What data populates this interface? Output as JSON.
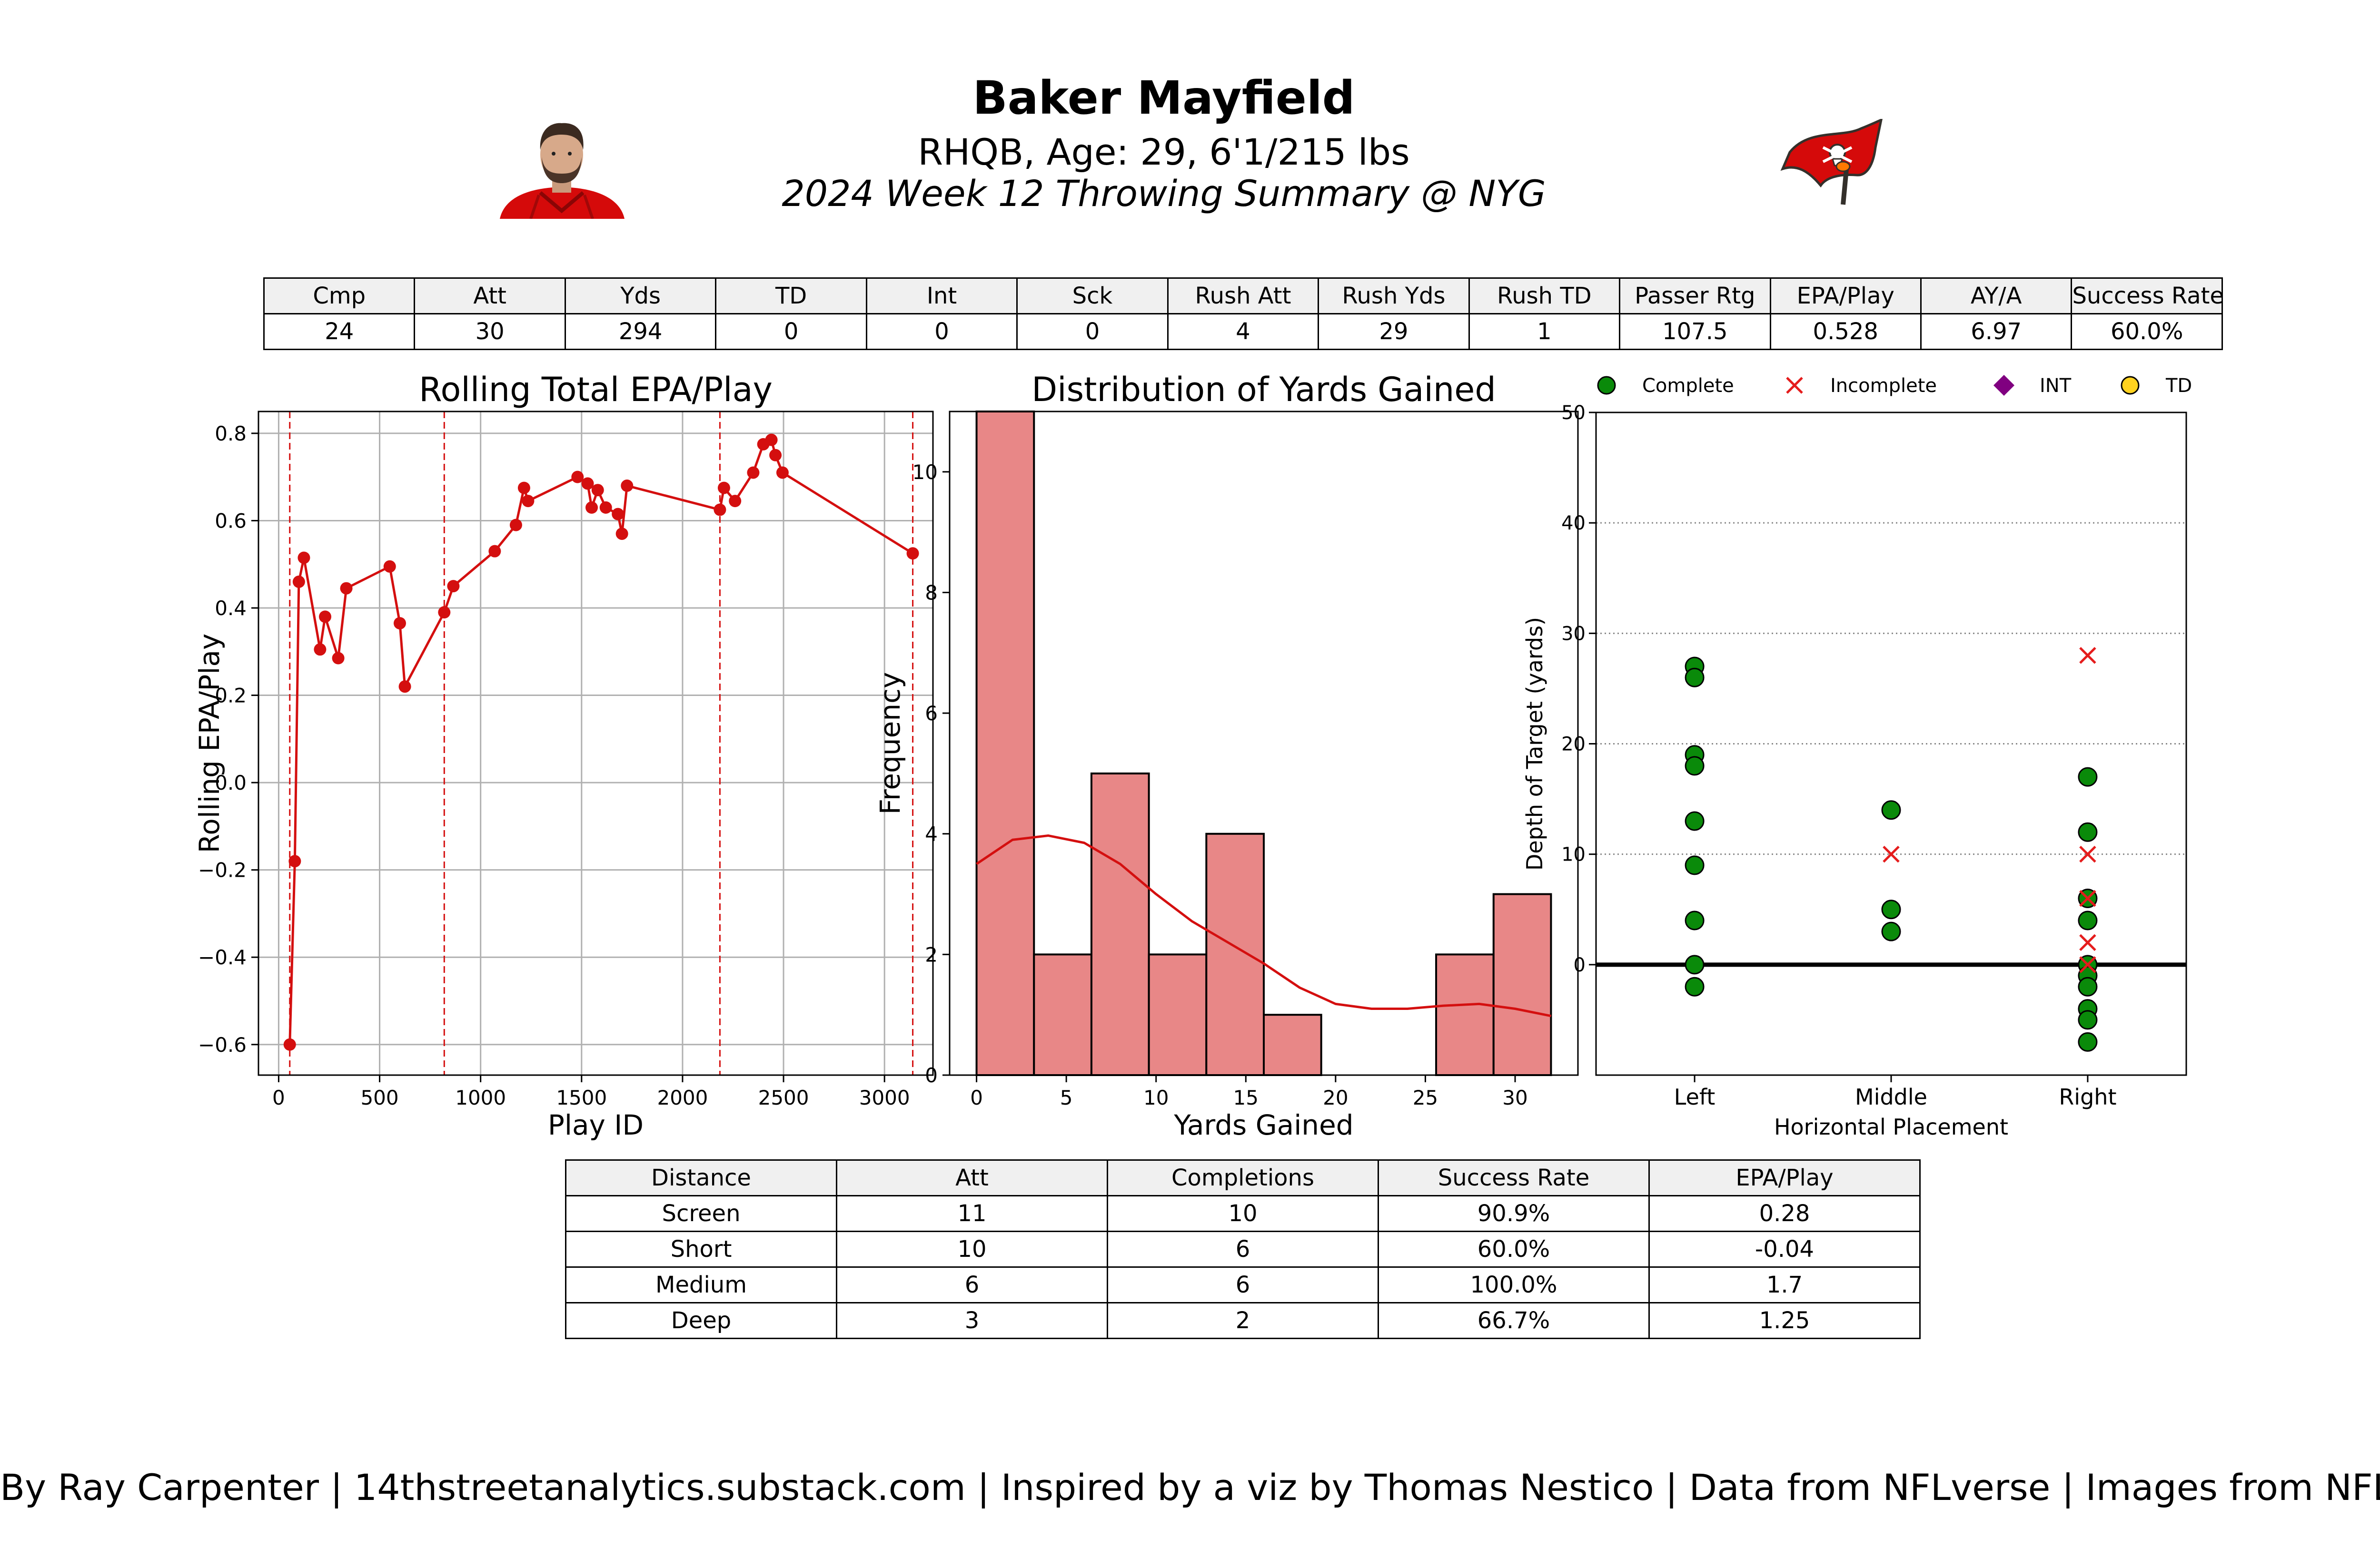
{
  "header": {
    "player_name": "Baker Mayfield",
    "player_info": "RHQB, Age: 29, 6'1/215 lbs",
    "game_summary": "2024 Week 12 Throwing Summary @ NYG"
  },
  "colors": {
    "team_red": "#d50a0a",
    "pewter": "#34302b",
    "bar_fill": "#e88787",
    "line_red": "#d40f0f",
    "complete_green": "#0a8a0a",
    "incomplete_red": "#e51c1c",
    "int_purple": "#800080",
    "td_gold": "#ffd21f"
  },
  "summary_table": {
    "headers": [
      "Cmp",
      "Att",
      "Yds",
      "TD",
      "Int",
      "Sck",
      "Rush Att",
      "Rush Yds",
      "Rush TD",
      "Passer Rtg",
      "EPA/Play",
      "AY/A",
      "Success Rate"
    ],
    "values": [
      "24",
      "30",
      "294",
      "0",
      "0",
      "0",
      "4",
      "29",
      "1",
      "107.5",
      "0.528",
      "6.97",
      "60.0%"
    ]
  },
  "distance_table": {
    "headers": [
      "Distance",
      "Att",
      "Completions",
      "Success Rate",
      "EPA/Play"
    ],
    "rows": [
      [
        "Screen",
        "11",
        "10",
        "90.9%",
        "0.28"
      ],
      [
        "Short",
        "10",
        "6",
        "60.0%",
        "-0.04"
      ],
      [
        "Medium",
        "6",
        "6",
        "100.0%",
        "1.7"
      ],
      [
        "Deep",
        "3",
        "2",
        "66.7%",
        "1.25"
      ]
    ]
  },
  "footer": "By Ray Carpenter | 14thstreetanalytics.substack.com | Inspired by a viz by Thomas Nestico | Data from NFLverse | Images from NFL.com",
  "chart_data": [
    {
      "type": "line",
      "title": "Rolling Total EPA/Play",
      "xlabel": "Play ID",
      "ylabel": "Rolling EPA/Play",
      "xlim": [
        -100,
        3240
      ],
      "ylim": [
        -0.67,
        0.85
      ],
      "xticks": [
        0,
        500,
        1000,
        1500,
        2000,
        2500,
        3000
      ],
      "yticks": [
        -0.6,
        -0.4,
        -0.2,
        0.0,
        0.2,
        0.4,
        0.6,
        0.8
      ],
      "grid": true,
      "series": [
        {
          "x": [
            55,
            80,
            100,
            125,
            205,
            230,
            295,
            335,
            550,
            600,
            625,
            820,
            865,
            1070,
            1175,
            1215,
            1235,
            1480,
            1530,
            1550,
            1580,
            1620,
            1680,
            1700,
            1725,
            2185,
            2205,
            2260,
            2350,
            2400,
            2440,
            2460,
            2495,
            3140
          ],
          "y": [
            -0.6,
            -0.18,
            0.46,
            0.515,
            0.305,
            0.38,
            0.285,
            0.445,
            0.495,
            0.365,
            0.22,
            0.39,
            0.45,
            0.53,
            0.59,
            0.675,
            0.645,
            0.7,
            0.685,
            0.63,
            0.67,
            0.63,
            0.615,
            0.57,
            0.68,
            0.625,
            0.675,
            0.645,
            0.71,
            0.775,
            0.785,
            0.75,
            0.71,
            0.525
          ]
        }
      ],
      "vlines": [
        55,
        820,
        2185,
        3140
      ]
    },
    {
      "type": "bar",
      "title": "Distribution of Yards Gained",
      "xlabel": "Yards Gained",
      "ylabel": "Frequency",
      "xlim": [
        -1.5,
        33.5
      ],
      "ylim": [
        0,
        11.0
      ],
      "xticks": [
        0,
        5,
        10,
        15,
        20,
        25,
        30
      ],
      "yticks": [
        0,
        2,
        4,
        6,
        8,
        10
      ],
      "bin_edges": [
        0,
        3.2,
        6.4,
        9.6,
        12.8,
        16.0,
        19.2,
        22.4,
        25.6,
        28.8,
        32.0
      ],
      "values": [
        11,
        2,
        5,
        2,
        4,
        1,
        0,
        0,
        2,
        3
      ],
      "kde": {
        "x": [
          0,
          2,
          4,
          6,
          8,
          10,
          12,
          14,
          16,
          18,
          20,
          22,
          24,
          26,
          28,
          30,
          32
        ],
        "y": [
          3.5,
          3.9,
          3.97,
          3.85,
          3.5,
          3.0,
          2.55,
          2.2,
          1.85,
          1.45,
          1.18,
          1.1,
          1.1,
          1.15,
          1.18,
          1.1,
          0.98
        ]
      }
    },
    {
      "type": "scatter",
      "xlabel": "Horizontal Placement",
      "ylabel": "Depth of Target (yards)",
      "categories": [
        "Left",
        "Middle",
        "Right"
      ],
      "ylim": [
        -10,
        50
      ],
      "yticks": [
        0,
        10,
        20,
        30,
        40,
        50
      ],
      "legend": [
        "Complete",
        "Incomplete",
        "INT",
        "TD"
      ],
      "legend_position": "top",
      "complete": [
        {
          "x": "Left",
          "y": 27
        },
        {
          "x": "Left",
          "y": 26
        },
        {
          "x": "Left",
          "y": 19
        },
        {
          "x": "Left",
          "y": 18
        },
        {
          "x": "Left",
          "y": 13
        },
        {
          "x": "Left",
          "y": 9
        },
        {
          "x": "Left",
          "y": 4
        },
        {
          "x": "Left",
          "y": 0
        },
        {
          "x": "Left",
          "y": -2
        },
        {
          "x": "Middle",
          "y": 14
        },
        {
          "x": "Middle",
          "y": 5
        },
        {
          "x": "Middle",
          "y": 3
        },
        {
          "x": "Right",
          "y": 17
        },
        {
          "x": "Right",
          "y": 12
        },
        {
          "x": "Right",
          "y": 6
        },
        {
          "x": "Right",
          "y": 4
        },
        {
          "x": "Right",
          "y": 0
        },
        {
          "x": "Right",
          "y": -1
        },
        {
          "x": "Right",
          "y": -2
        },
        {
          "x": "Right",
          "y": -4
        },
        {
          "x": "Right",
          "y": -5
        },
        {
          "x": "Right",
          "y": -7
        }
      ],
      "incomplete": [
        {
          "x": "Middle",
          "y": 10
        },
        {
          "x": "Right",
          "y": 28
        },
        {
          "x": "Right",
          "y": 10
        },
        {
          "x": "Right",
          "y": 6
        },
        {
          "x": "Right",
          "y": 2
        },
        {
          "x": "Right",
          "y": 0
        }
      ],
      "int": [],
      "td": []
    }
  ]
}
